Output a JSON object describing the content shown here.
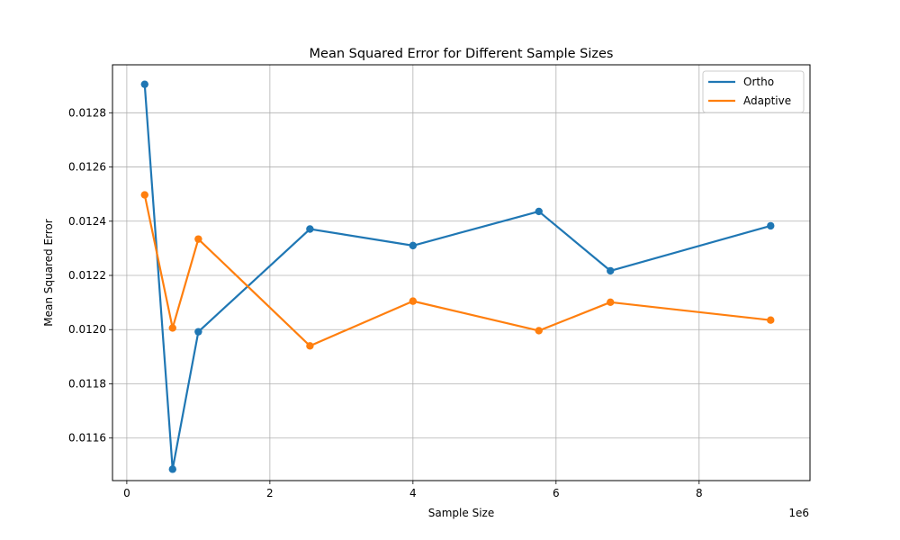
{
  "chart_data": {
    "type": "line",
    "title": "Mean Squared Error for Different Sample Sizes",
    "xlabel": "Sample Size",
    "ylabel": "Mean Squared Error",
    "x_offset_text": "1e6",
    "x": [
      250000,
      640000,
      1000000,
      2560000,
      4000000,
      5760000,
      6760000,
      9000000
    ],
    "series": [
      {
        "name": "Ortho",
        "color": "#1f77b4",
        "values": [
          0.012905,
          0.011485,
          0.011992,
          0.012371,
          0.01231,
          0.012436,
          0.012217,
          0.012383
        ]
      },
      {
        "name": "Adaptive",
        "color": "#ff7f0e",
        "values": [
          0.012497,
          0.012006,
          0.012334,
          0.01194,
          0.012105,
          0.011996,
          0.012101,
          0.012035
        ]
      }
    ],
    "xlim": [
      -200000,
      9550000
    ],
    "ylim": [
      0.011443,
      0.012977
    ],
    "x_ticks": [
      0,
      2000000,
      4000000,
      6000000,
      8000000
    ],
    "x_tick_labels": [
      "0",
      "2",
      "4",
      "6",
      "8"
    ],
    "y_ticks": [
      0.0116,
      0.0118,
      0.012,
      0.0122,
      0.0124,
      0.0126,
      0.0128
    ],
    "y_tick_labels": [
      "0.0116",
      "0.0118",
      "0.0120",
      "0.0122",
      "0.0124",
      "0.0126",
      "0.0128"
    ],
    "grid": true,
    "legend_position": "top-right"
  }
}
